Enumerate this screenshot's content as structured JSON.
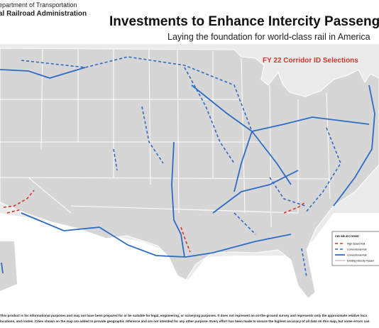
{
  "header": {
    "agency_line1": "epartment of Transportation",
    "agency_line2": "al Railroad Administration",
    "title": "Investments to Enhance Intercity Passeng",
    "subtitle": "Laying the foundation for world-class rail in America"
  },
  "map_label": "FY 22 Corridor ID Selections",
  "legend": {
    "title": "CID SELECTIONS",
    "items": [
      "High Speed Rail",
      "Conventional Rail",
      "Conventional Rail",
      "Existing Intercity Passen"
    ]
  },
  "footer": {
    "lines": [
      "This product is for informational purposes and may not have been prepared for or be suitable for legal, engineering, or surveying purposes. It does not represent an on-the-ground survey and represents only the approximate relative loca",
      "locations, and routes. Cities shown on the map are added to provide geographic reference and are not intended for any other purpose. Every effort has been made to ensure the highest accuracy of all data on this map, but some errors can"
    ]
  }
}
